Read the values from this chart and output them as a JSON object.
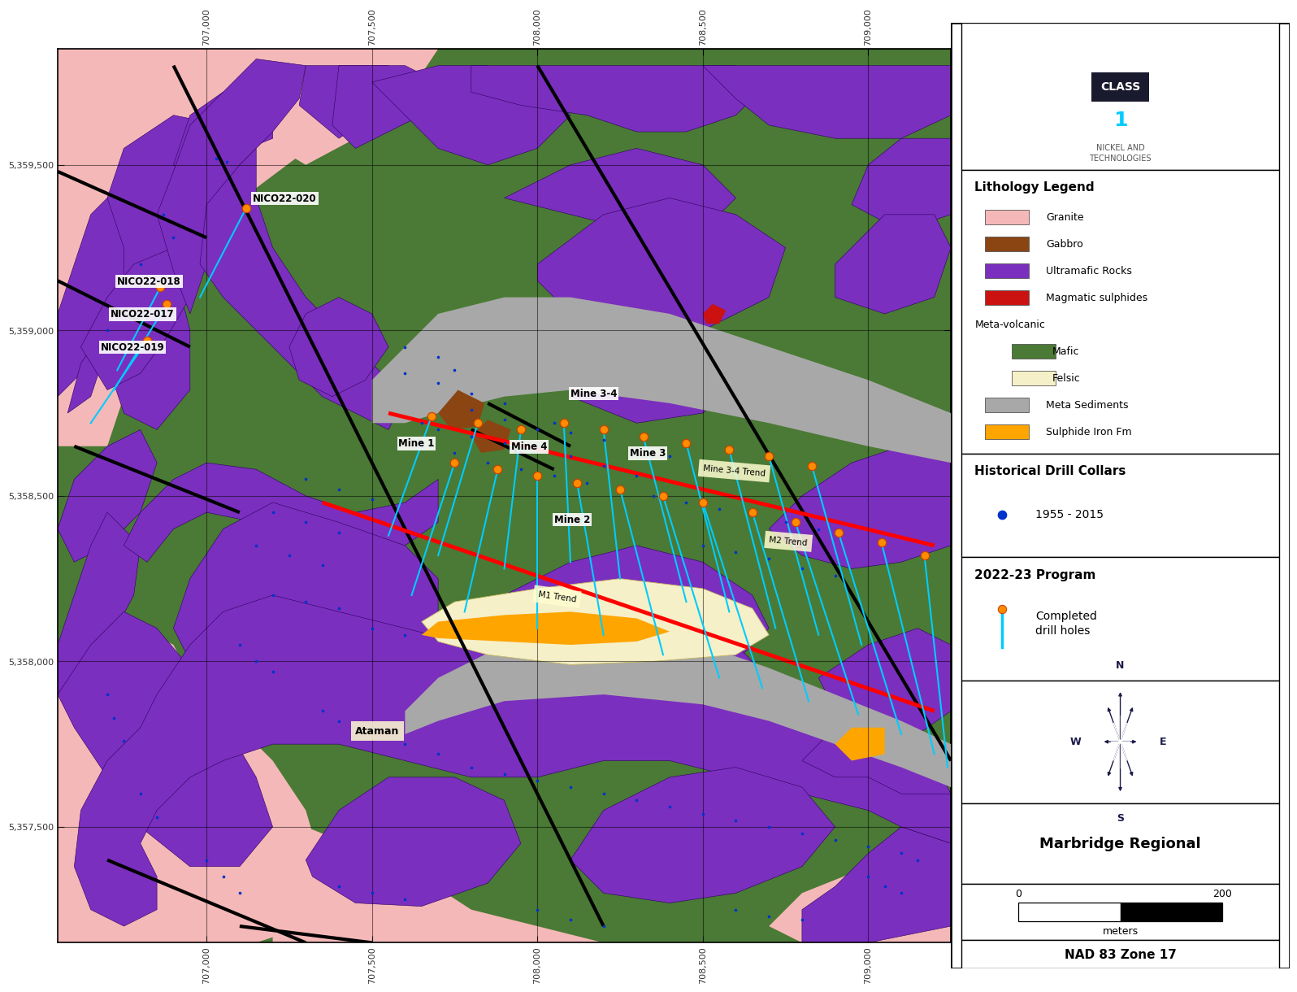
{
  "map_bg_color": "#4a7a35",
  "panel_bg_color": "#ffffff",
  "map_xlim": [
    706550,
    709250
  ],
  "map_ylim": [
    5357150,
    5359850
  ],
  "grid_color": "#000000",
  "grid_alpha": 0.5,
  "xticks": [
    707000,
    707500,
    708000,
    708500,
    709000
  ],
  "yticks": [
    5357500,
    5358000,
    5358500,
    5359000,
    5359500
  ],
  "granite_color": "#f5b8b8",
  "purple_color": "#7b2fbe",
  "gray_color": "#a8a8a8",
  "felsic_color": "#f5f0c8",
  "gabbro_color": "#8B4513",
  "orange_color": "#ffa500",
  "red_color": "#cc1111",
  "fault_color": "#000000",
  "hist_collar_color": "#0033cc",
  "drill_collar_color": "#ff8c00",
  "drill_trace_color": "#00ccff",
  "lith_items": [
    {
      "label": "Granite",
      "color": "#f5b8b8",
      "has_swatch": true
    },
    {
      "label": "Gabbro",
      "color": "#8B4513",
      "has_swatch": true
    },
    {
      "label": "Ultramafic Rocks",
      "color": "#7b2fbe",
      "has_swatch": true
    },
    {
      "label": "Magmatic sulphides",
      "color": "#cc1111",
      "has_swatch": true
    },
    {
      "label": "Meta-volcanic",
      "color": null,
      "has_swatch": false
    },
    {
      "label": "Mafic",
      "color": "#4a7a35",
      "has_swatch": true,
      "indent": true
    },
    {
      "label": "Felsic",
      "color": "#f5f0c8",
      "has_swatch": true,
      "indent": true
    },
    {
      "label": "Meta Sediments",
      "color": "#a8a8a8",
      "has_swatch": true
    },
    {
      "label": "Sulphide Iron Fm",
      "color": "#ffa500",
      "has_swatch": true
    }
  ],
  "map_name": "Marbridge Regional",
  "coord_label": "NAD 83 Zone 17"
}
